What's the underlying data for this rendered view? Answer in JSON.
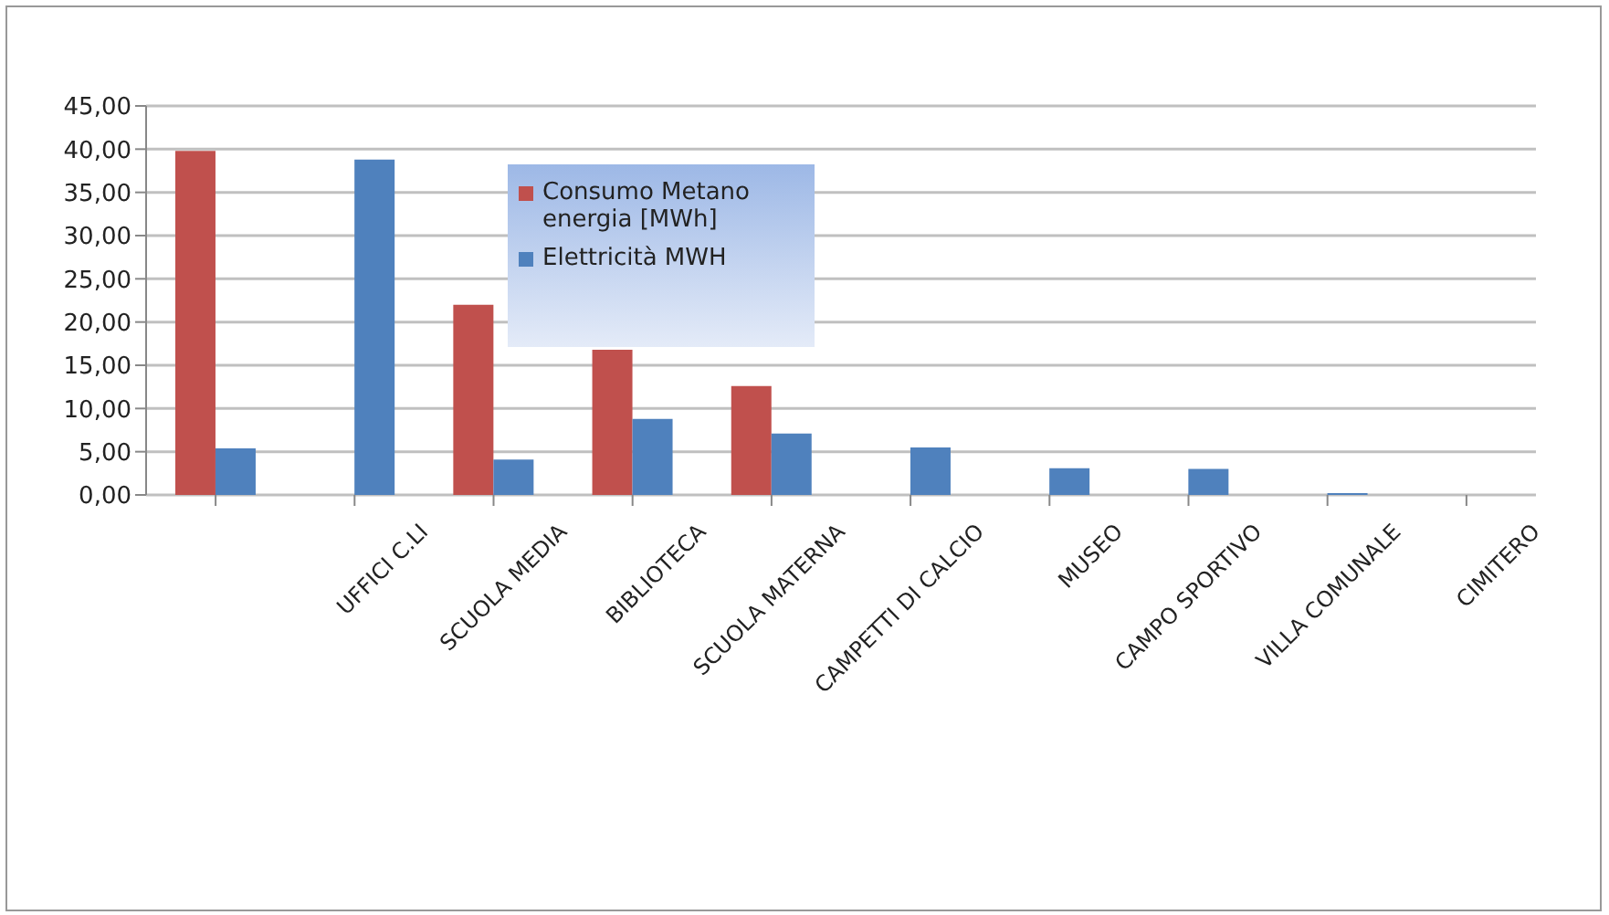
{
  "chart_data": {
    "type": "bar",
    "categories": [
      null,
      "UFFICI C.LI",
      "SCUOLA MEDIA",
      "BIBLIOTECA",
      "SCUOLA MATERNA",
      "CAMPETTI DI CALCIO",
      "MUSEO",
      "CAMPO SPORTIVO",
      "VILLA COMUNALE",
      "CIMITERO"
    ],
    "series": [
      {
        "name": "Consumo Metano energia [MWh]",
        "color": "#c0504d",
        "values": [
          39.8,
          null,
          22.0,
          16.8,
          12.6,
          null,
          null,
          null,
          null,
          null
        ]
      },
      {
        "name": "Elettricità MWH",
        "color": "#4f81bd",
        "values": [
          5.4,
          38.8,
          4.1,
          8.8,
          7.1,
          5.5,
          3.1,
          3.0,
          0.2,
          null
        ]
      }
    ],
    "ylim": [
      0,
      45
    ],
    "yticks": [
      {
        "value": 0,
        "label": "0,00"
      },
      {
        "value": 5,
        "label": "5,00"
      },
      {
        "value": 10,
        "label": "10,00"
      },
      {
        "value": 15,
        "label": "15,00"
      },
      {
        "value": 20,
        "label": "20,00"
      },
      {
        "value": 25,
        "label": "25,00"
      },
      {
        "value": 30,
        "label": "30,00"
      },
      {
        "value": 35,
        "label": "35,00"
      },
      {
        "value": 40,
        "label": "40,00"
      },
      {
        "value": 45,
        "label": "45,00"
      }
    ],
    "grid": "y",
    "legend": "top"
  }
}
